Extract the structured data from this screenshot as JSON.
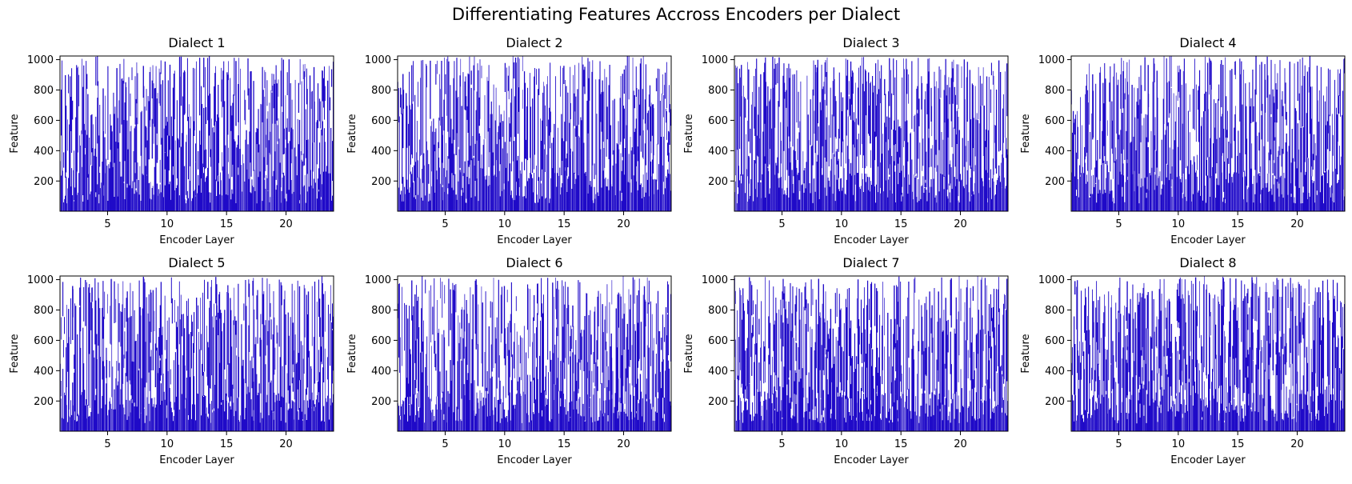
{
  "figure_title": "Differentiating Features Accross Encoders per Dialect",
  "chart_data": {
    "type": "heatmap",
    "description_colors": {
      "marked": "#1f0ac8",
      "unmarked": "#ffffff"
    },
    "xlabel": "Encoder Layer",
    "ylabel": "Feature",
    "xlim": [
      1,
      24
    ],
    "ylim": [
      1,
      1024
    ],
    "xticks": [
      5,
      10,
      15,
      20
    ],
    "yticks": [
      200,
      400,
      600,
      800,
      1000
    ],
    "grid": false,
    "panels": [
      {
        "title": "Dialect 1",
        "seed": 11
      },
      {
        "title": "Dialect 2",
        "seed": 23
      },
      {
        "title": "Dialect 3",
        "seed": 37
      },
      {
        "title": "Dialect 4",
        "seed": 41
      },
      {
        "title": "Dialect 5",
        "seed": 53
      },
      {
        "title": "Dialect 6",
        "seed": 67
      },
      {
        "title": "Dialect 7",
        "seed": 79
      },
      {
        "title": "Dialect 8",
        "seed": 83
      }
    ]
  }
}
